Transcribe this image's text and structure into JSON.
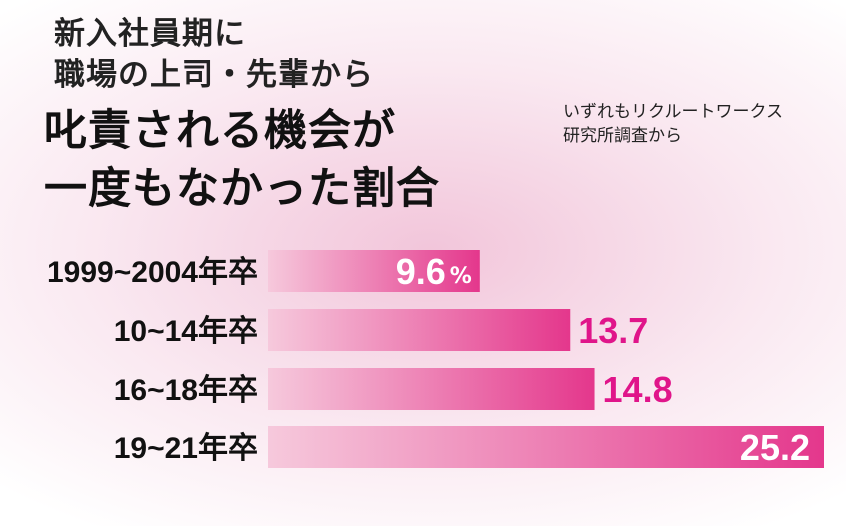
{
  "titles": {
    "subtitle_line1": "新入社員期に",
    "subtitle_line2": "職場の上司・先輩から",
    "title_line1": "叱責される機会が",
    "title_line2": "一度もなかった割合"
  },
  "source": {
    "line1": "いずれもリクルートワークス",
    "line2": "研究所調査から"
  },
  "colors": {
    "bar_light": "#f6c9dc",
    "bar_dark": "#e4378c",
    "value_outside": "#e0158a",
    "value_inside": "#ffffff"
  },
  "chart_data": {
    "type": "bar",
    "orientation": "horizontal",
    "categories": [
      "1999~2004年卒",
      "10~14年卒",
      "16~18年卒",
      "19~21年卒"
    ],
    "values": [
      9.6,
      13.7,
      14.8,
      25.2
    ],
    "value_labels": [
      "9.6",
      "13.7",
      "14.8",
      "25.2"
    ],
    "unit": "%",
    "xlim": [
      0,
      25.2
    ],
    "label_positions": [
      "inside",
      "outside",
      "outside",
      "inside"
    ],
    "grid": false,
    "legend": false
  }
}
